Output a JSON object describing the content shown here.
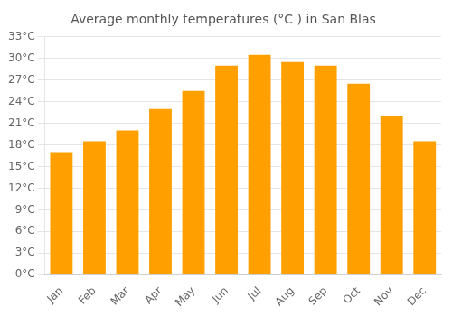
{
  "chart_data": {
    "type": "bar",
    "title": "Average monthly temperatures (°C ) in San Blas",
    "categories": [
      "Jan",
      "Feb",
      "Mar",
      "Apr",
      "May",
      "Jun",
      "Jul",
      "Aug",
      "Sep",
      "Oct",
      "Nov",
      "Dec"
    ],
    "values": [
      17.0,
      18.5,
      20.0,
      23.0,
      25.5,
      29.0,
      30.5,
      29.5,
      29.0,
      26.5,
      22.0,
      18.5
    ],
    "color": "#FFA000",
    "ylim": [
      0,
      33
    ],
    "yticks": [
      {
        "value": 0,
        "label": "0°C"
      },
      {
        "value": 3,
        "label": "3°C"
      },
      {
        "value": 6,
        "label": "6°C"
      },
      {
        "value": 9,
        "label": "9°C"
      },
      {
        "value": 12,
        "label": "12°C"
      },
      {
        "value": 15,
        "label": "15°C"
      },
      {
        "value": 18,
        "label": "18°C"
      },
      {
        "value": 21,
        "label": "21°C"
      },
      {
        "value": 24,
        "label": "24°C"
      },
      {
        "value": 27,
        "label": "27°C"
      },
      {
        "value": 30,
        "label": "30°C"
      },
      {
        "value": 33,
        "label": "33°C"
      }
    ],
    "grid": true
  }
}
